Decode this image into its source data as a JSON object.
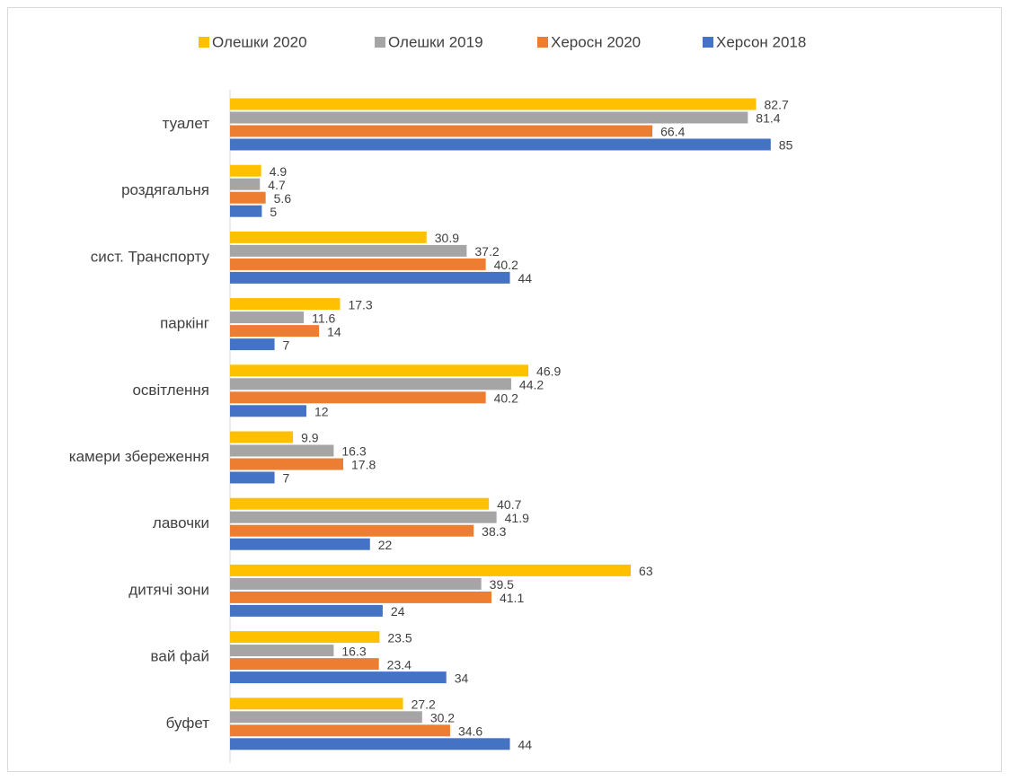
{
  "chart_data": {
    "type": "bar",
    "orientation": "horizontal",
    "categories": [
      "туалет",
      "роздягальня",
      "сист. Транспорту",
      "паркінг",
      "освітлення",
      "камери збереження",
      "лавочки",
      "дитячі зони",
      "вай фай",
      "буфет"
    ],
    "series": [
      {
        "name": "Олешки 2020",
        "color": "#ffc000",
        "values": [
          82.7,
          4.9,
          30.9,
          17.3,
          46.9,
          9.9,
          40.7,
          63,
          23.5,
          27.2
        ]
      },
      {
        "name": "Олешки 2019",
        "color": "#a5a5a5",
        "values": [
          81.4,
          4.7,
          37.2,
          11.6,
          44.2,
          16.3,
          41.9,
          39.5,
          16.3,
          30.2
        ]
      },
      {
        "name": "Херосн 2020",
        "color": "#ed7d31",
        "values": [
          66.4,
          5.6,
          40.2,
          14,
          40.2,
          17.8,
          38.3,
          41.1,
          23.4,
          34.6
        ]
      },
      {
        "name": "Херсон 2018",
        "color": "#4472c4",
        "values": [
          85,
          5,
          44,
          7,
          12,
          7,
          22,
          24,
          34,
          44
        ]
      }
    ],
    "xlim": [
      0,
      100
    ],
    "legend": "top"
  }
}
